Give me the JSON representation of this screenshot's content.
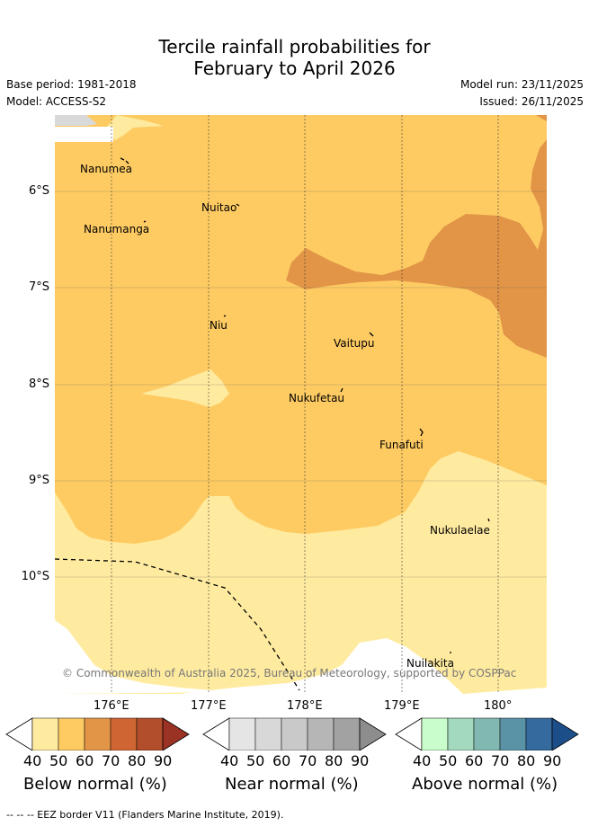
{
  "title": {
    "line1": "Tercile rainfall probabilities for",
    "line2": "February to April 2026"
  },
  "meta": {
    "base_period": "Base period: 1981-2018",
    "model": "Model: ACCESS-S2",
    "model_run": "Model run: 23/11/2025",
    "issued": "Issued: 26/11/2025"
  },
  "map": {
    "latitude_labels": [
      "6°S",
      "7°S",
      "8°S",
      "9°S",
      "10°S"
    ],
    "longitude_labels": [
      "176°E",
      "177°E",
      "178°E",
      "179°E",
      "180°"
    ],
    "places": [
      "Nanumea",
      "Nuitao",
      "Nanumanga",
      "Niu",
      "Vaitupu",
      "Nukufetau",
      "Funafuti",
      "Nukulaelae",
      "Nuilakita"
    ],
    "copyright": "© Commonwealth of Australia 2025, Bureau of Meteorology, supported by COSPPac",
    "colors": {
      "below_50": "#ffeba0",
      "below_60": "#fecb63",
      "below_70": "#e29547",
      "land_mask": "#d9d9d9",
      "grid": "#444444"
    }
  },
  "colorbars": {
    "below": {
      "title": "Below normal (%)",
      "ticks": [
        "40",
        "50",
        "60",
        "70",
        "80",
        "90"
      ],
      "colors": [
        "#ffffff",
        "#ffeba0",
        "#fecb63",
        "#e29547",
        "#cf6533",
        "#b24e2b",
        "#9b3324"
      ]
    },
    "near": {
      "title": "Near normal (%)",
      "ticks": [
        "40",
        "50",
        "60",
        "70",
        "80",
        "90"
      ],
      "colors": [
        "#ffffff",
        "#e5e5e5",
        "#d8d8d8",
        "#c9c9c9",
        "#b6b6b6",
        "#a2a2a2",
        "#8d8d8d"
      ]
    },
    "above": {
      "title": "Above normal (%)",
      "ticks": [
        "40",
        "50",
        "60",
        "70",
        "80",
        "90"
      ],
      "colors": [
        "#ffffff",
        "#c9fdcb",
        "#a3d9bd",
        "#82b8b2",
        "#5a93a5",
        "#356a9f",
        "#1c4e89"
      ]
    }
  },
  "footer": {
    "legend_line": "-- -- -- EEZ border V11 (Flanders Marine Institute, 2019)."
  }
}
